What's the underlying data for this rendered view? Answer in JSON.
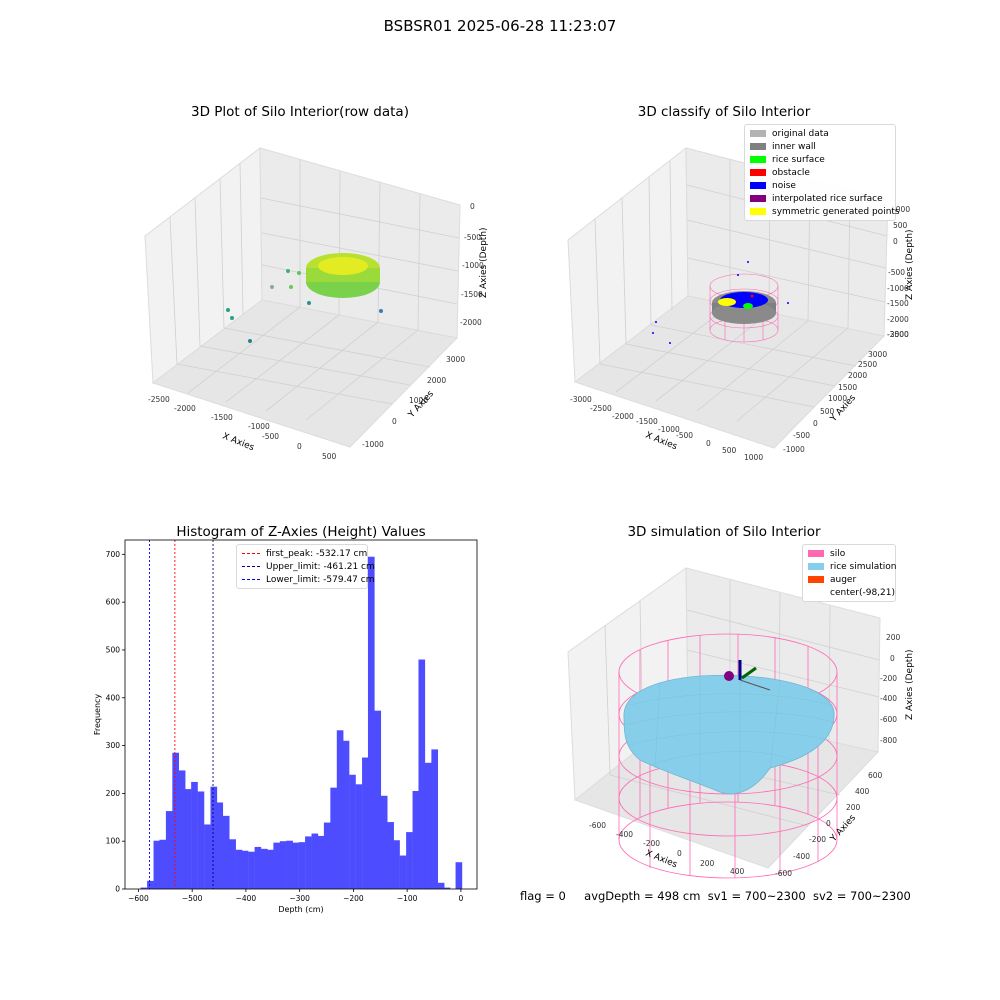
{
  "figure_title": "BSBSR01 2025-06-28 11:23:07",
  "footer": {
    "flag": "flag = 0",
    "avg_depth": "avgDepth = 498 cm",
    "sv1": "sv1 = 700~2300",
    "sv2": "sv2 = 700~2300"
  },
  "panels": {
    "raw": {
      "title": "3D Plot of Silo Interior(row data)",
      "xlabel": "X Axies",
      "ylabel": "Y Axies",
      "zlabel": "Z Axies (Depth)",
      "xticks": [
        "-2500",
        "-2000",
        "-1500",
        "-1000",
        "-500",
        "0",
        "500"
      ],
      "yticks": [
        "-1000",
        "0",
        "1000",
        "2000",
        "3000"
      ],
      "zticks": [
        "0",
        "-500",
        "-1000",
        "-1500",
        "-2000"
      ]
    },
    "classify": {
      "title": "3D classify of Silo Interior",
      "xlabel": "X Axies",
      "ylabel": "Y Axies",
      "zlabel": "Z Axies (Depth)",
      "xticks": [
        "-3000",
        "-2500",
        "-2000",
        "-1500",
        "-1000",
        "-500",
        "0",
        "500",
        "1000"
      ],
      "yticks": [
        "-1000",
        "-500",
        "0",
        "500",
        "1000",
        "1500",
        "2000",
        "2500",
        "3000"
      ],
      "zticks": [
        "1000",
        "500",
        "0",
        "-500",
        "-1000",
        "-1500",
        "-2000",
        "-2500",
        "-3000"
      ],
      "legend": [
        {
          "label": "original data",
          "color": "#b3b3b3"
        },
        {
          "label": "inner wall",
          "color": "#808080"
        },
        {
          "label": "rice surface",
          "color": "#00ff00"
        },
        {
          "label": "obstacle",
          "color": "#ff0000"
        },
        {
          "label": "noise",
          "color": "#0000ff"
        },
        {
          "label": "interpolated rice surface",
          "color": "#800080"
        },
        {
          "label": "symmetric generated points",
          "color": "#ffff00"
        }
      ]
    },
    "simulation": {
      "title": "3D simulation of Silo Interior",
      "xlabel": "X Axies",
      "ylabel": "Y Axies",
      "zlabel": "Z Axies (Depth)",
      "xticks": [
        "-600",
        "-400",
        "-200",
        "0",
        "200",
        "400"
      ],
      "yticks": [
        "-600",
        "-400",
        "-200",
        "0",
        "200",
        "400",
        "600"
      ],
      "zticks": [
        "200",
        "0",
        "-200",
        "-400",
        "-600",
        "-800"
      ],
      "legend": [
        {
          "label": "silo",
          "color": "#ff69b4"
        },
        {
          "label": "rice simulation",
          "color": "#87ceeb"
        },
        {
          "label": "auger",
          "color": "#ff4500"
        },
        {
          "label": "center(-98,21)",
          "color": "#ffffff"
        }
      ]
    }
  },
  "chart_data": {
    "type": "bar",
    "title": "Histogram of Z-Axies (Height) Values",
    "xlabel": "Depth (cm)",
    "ylabel": "Frequency",
    "xlim": [
      -625,
      30
    ],
    "ylim": [
      0,
      730
    ],
    "xticks": [
      -600,
      -500,
      -400,
      -300,
      -200,
      -100,
      0
    ],
    "yticks": [
      0,
      100,
      200,
      300,
      400,
      500,
      600,
      700
    ],
    "bar_color": "#4d4dff",
    "bin_width": 11.8,
    "bins": [
      [
        -590,
        3
      ],
      [
        -578,
        17
      ],
      [
        -566,
        101
      ],
      [
        -555,
        103
      ],
      [
        -543,
        163
      ],
      [
        -531,
        285
      ],
      [
        -519,
        248
      ],
      [
        -508,
        209
      ],
      [
        -496,
        224
      ],
      [
        -484,
        204
      ],
      [
        -472,
        135
      ],
      [
        -460,
        214
      ],
      [
        -449,
        181
      ],
      [
        -437,
        153
      ],
      [
        -425,
        104
      ],
      [
        -413,
        82
      ],
      [
        -402,
        80
      ],
      [
        -390,
        78
      ],
      [
        -378,
        88
      ],
      [
        -366,
        84
      ],
      [
        -355,
        82
      ],
      [
        -343,
        97
      ],
      [
        -331,
        100
      ],
      [
        -319,
        101
      ],
      [
        -308,
        97
      ],
      [
        -296,
        98
      ],
      [
        -284,
        110
      ],
      [
        -272,
        116
      ],
      [
        -261,
        111
      ],
      [
        -249,
        139
      ],
      [
        -237,
        212
      ],
      [
        -225,
        332
      ],
      [
        -214,
        310
      ],
      [
        -202,
        239
      ],
      [
        -190,
        219
      ],
      [
        -178,
        275
      ],
      [
        -167,
        695
      ],
      [
        -155,
        373
      ],
      [
        -143,
        195
      ],
      [
        -131,
        140
      ],
      [
        -120,
        102
      ],
      [
        -108,
        70
      ],
      [
        -96,
        119
      ],
      [
        -84,
        205
      ],
      [
        -73,
        480
      ],
      [
        -61,
        264
      ],
      [
        -49,
        292
      ],
      [
        -37,
        13
      ],
      [
        -26,
        3
      ],
      [
        -14,
        0
      ],
      [
        -4,
        56
      ]
    ],
    "reference_lines": [
      {
        "label": "first_peak: -532.17 cm",
        "x": -532.17,
        "color": "#ff0000"
      },
      {
        "label": "Upper_limit: -461.21 cm",
        "x": -461.21,
        "color": "#00008b"
      },
      {
        "label": "Lower_limit: -579.47 cm",
        "x": -579.47,
        "color": "#0000ff"
      }
    ]
  }
}
